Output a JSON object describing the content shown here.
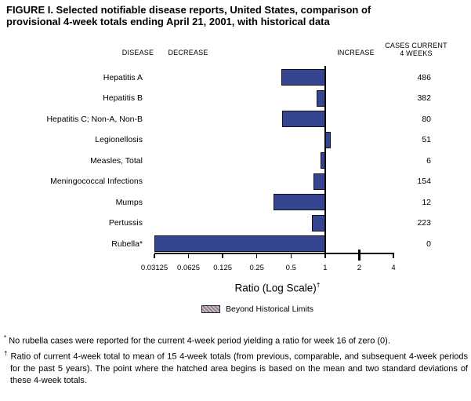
{
  "title": {
    "line1": "FIGURE I. Selected notifiable disease reports, United States, comparison of",
    "line2": "provisional 4-week totals ending April 21, 2001, with historical data"
  },
  "headers": {
    "disease": "DISEASE",
    "decrease": "DECREASE",
    "increase": "INCREASE",
    "cases_line1": "CASES CURRENT",
    "cases_line2": "4 WEEKS"
  },
  "axis": {
    "title": "Ratio (Log Scale)",
    "superscript": "†"
  },
  "legend": {
    "label": "Beyond Historical Limits"
  },
  "footnotes": [
    {
      "marker": "*",
      "text": "No rubella cases were reported for the current 4-week period yielding a ratio for week 16 of zero (0)."
    },
    {
      "marker": "†",
      "text": "Ratio of current 4-week total to mean of 15 4-week totals (from previous, comparable, and subsequent 4-week periods for the past 5 years). The point where the hatched area begins is based on the mean and two standard deviations of these 4-week totals."
    }
  ],
  "colors": {
    "bar_fill": "#36458f",
    "bar_border": "#10101c",
    "axis_line": "#000000",
    "legend_swatch_bg": "#c2b6bf",
    "legend_swatch_hatch": "#776877",
    "text": "#000000"
  },
  "chart_data": {
    "type": "bar",
    "orientation": "horizontal",
    "title": "Selected notifiable disease reports, United States, comparison of provisional 4-week totals ending April 21, 2001, with historical data",
    "xlabel": "Ratio (Log Scale)†",
    "x_scale": "log2",
    "xlim": [
      0.03125,
      4
    ],
    "baseline_ratio": 1,
    "x_tick_labels": [
      "0.03125",
      "0.0625",
      "0.125",
      "0.25",
      "0.5",
      "1",
      "2",
      "4"
    ],
    "x_tick_values": [
      0.03125,
      0.0625,
      0.125,
      0.25,
      0.5,
      1,
      2,
      4
    ],
    "grid": false,
    "legend_entries": [
      "Beyond Historical Limits"
    ],
    "rows": [
      {
        "disease": "Hepatitis A",
        "ratio": 0.41,
        "cases_current_4_weeks": "486"
      },
      {
        "disease": "Hepatitis B",
        "ratio": 0.84,
        "cases_current_4_weeks": "382"
      },
      {
        "disease": "Hepatitis C; Non-A, Non-B",
        "ratio": 0.42,
        "cases_current_4_weeks": "80"
      },
      {
        "disease": "Legionellosis",
        "ratio": 1.12,
        "cases_current_4_weeks": "51"
      },
      {
        "disease": "Measles, Total",
        "ratio": 0.91,
        "cases_current_4_weeks": "6"
      },
      {
        "disease": "Meningococcal Infections",
        "ratio": 0.79,
        "cases_current_4_weeks": "154"
      },
      {
        "disease": "Mumps",
        "ratio": 0.35,
        "cases_current_4_weeks": "12"
      },
      {
        "disease": "Pertussis",
        "ratio": 0.77,
        "cases_current_4_weeks": "223"
      },
      {
        "disease": "Rubella*",
        "ratio": 0,
        "cases_current_4_weeks": "0"
      }
    ]
  }
}
